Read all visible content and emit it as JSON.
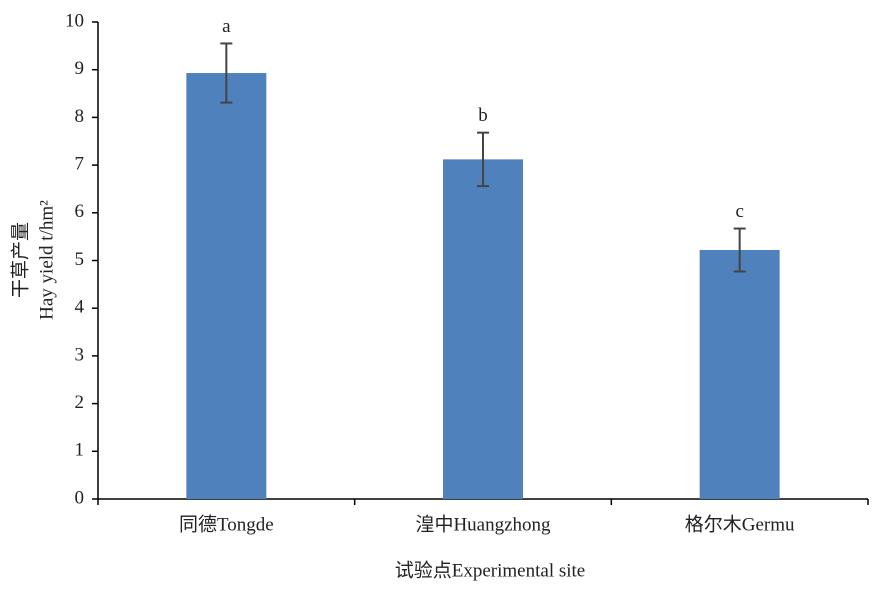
{
  "chart_data": {
    "type": "bar",
    "x_label": "试验点Experimental site",
    "y_label": [
      "干草产量",
      "Hay yield  t/hm²"
    ],
    "categories": [
      "同德Tongde",
      "湟中Huangzhong",
      "格尔木Germu"
    ],
    "values": [
      8.93,
      7.12,
      5.22
    ],
    "errors": [
      0.62,
      0.56,
      0.45
    ],
    "letters": [
      "a",
      "b",
      "c"
    ],
    "color": "#4f81bd",
    "ylim": [
      0,
      10
    ],
    "yticks": [
      0,
      1,
      2,
      3,
      4,
      5,
      6,
      7,
      8,
      9,
      10
    ],
    "grid": false
  }
}
